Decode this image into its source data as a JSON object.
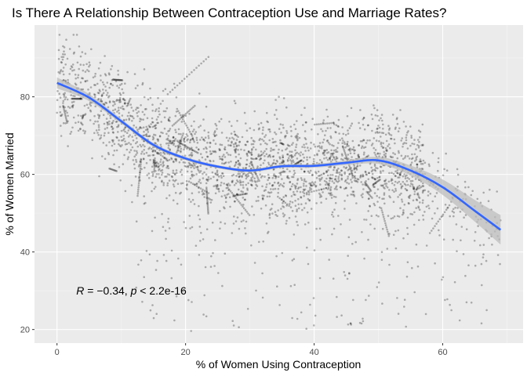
{
  "chart_data": {
    "type": "scatter",
    "title": "Is There A Relationship Between Contraception Use and Marriage Rates?",
    "xlabel": "% of Women Using Contraception",
    "ylabel": "% of Women Married",
    "xlim": [
      -3.5,
      72.5
    ],
    "ylim": [
      16.5,
      98.5
    ],
    "x_ticks": [
      0,
      20,
      40,
      60
    ],
    "y_ticks": [
      20,
      40,
      60,
      80
    ],
    "grid": true,
    "legend": "none",
    "annotation": {
      "r_symbol": "R",
      "r_text": " = −0.34, ",
      "p_symbol": "p",
      "p_text": " < 2.2e-16",
      "x": 3,
      "y": 30
    },
    "smooth_line": {
      "x": [
        0,
        5,
        10,
        15,
        20,
        25,
        30,
        35,
        40,
        45,
        50,
        55,
        60,
        65,
        69
      ],
      "y": [
        83.6,
        79.8,
        73.7,
        67.6,
        64.1,
        62.0,
        61.0,
        62.1,
        62.2,
        63.0,
        63.6,
        61.0,
        56.7,
        50.6,
        45.7
      ],
      "band_halfwidth": [
        1.4,
        0.9,
        0.6,
        0.5,
        0.45,
        0.4,
        0.4,
        0.4,
        0.45,
        0.6,
        0.9,
        1.3,
        2.0,
        2.8,
        3.8
      ]
    },
    "point_cloud_summary": {
      "n_points": 3200,
      "x_range": [
        0,
        69
      ],
      "y_range": [
        19.5,
        96
      ]
    },
    "colors": {
      "panel_bg": "#ebebeb",
      "grid_major": "#ffffff",
      "grid_minor": "#f5f5f5",
      "points": "#000000",
      "smooth": "#3366ff",
      "band": "#bdbdbd"
    }
  }
}
